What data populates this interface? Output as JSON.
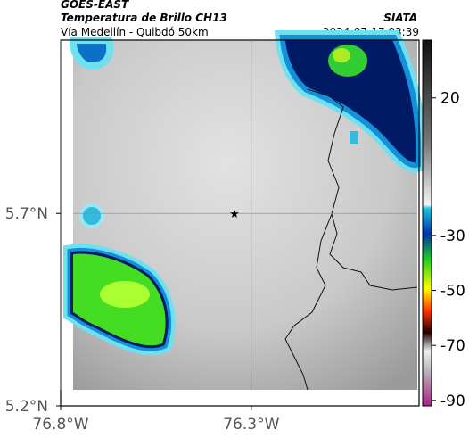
{
  "header": {
    "satellite": "GOES-EAST",
    "product": "Temperatura de Brillo CH13",
    "source": "SIATA",
    "region": "Vía Medellín - Quibdó 50km",
    "timestamp": "2024-07-17 03:39"
  },
  "map": {
    "xlim": [
      -76.8,
      -75.86
    ],
    "ylim": [
      5.2,
      6.15
    ],
    "xticks": [
      {
        "value": -76.8,
        "label": "76.8°W"
      },
      {
        "value": -76.3,
        "label": "76.3°W"
      }
    ],
    "yticks": [
      {
        "value": 5.7,
        "label": "5.7°N"
      },
      {
        "value": 5.2,
        "label": "5.2°N"
      }
    ],
    "grid": true,
    "marker": {
      "lon": -76.344,
      "lat": 5.7
    }
  },
  "colorbar": {
    "lim": [
      -92,
      41
    ],
    "ticks": [
      20,
      -30,
      -50,
      -70,
      -90
    ]
  }
}
